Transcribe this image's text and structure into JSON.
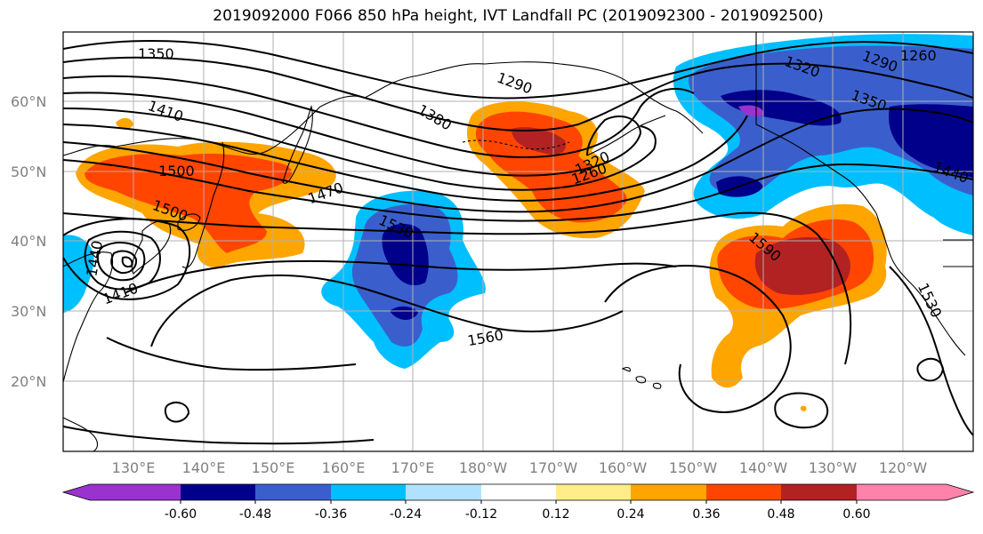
{
  "title": "2019092000 F066 850 hPa height, IVT Landfall PC (2019092300 - 2019092500)",
  "map": {
    "lat_ticks": [
      "60°N",
      "50°N",
      "40°N",
      "30°N",
      "20°N"
    ],
    "lon_ticks": [
      "130°E",
      "140°E",
      "150°E",
      "160°E",
      "170°E",
      "180°W",
      "170°W",
      "160°W",
      "150°W",
      "140°W",
      "130°W",
      "120°W"
    ],
    "contour_labels": [
      "1350",
      "1410",
      "1500",
      "1500",
      "1470",
      "1380",
      "1290",
      "1320",
      "1290",
      "1260",
      "1350",
      "1440",
      "1530",
      "1320",
      "1260",
      "1590",
      "1560",
      "1530",
      "1410",
      "1440"
    ]
  },
  "colorbar": {
    "colors": [
      "#9a32cd",
      "#00008b",
      "#3a5fcd",
      "#00bfff",
      "#b0e2ff",
      "#ffffff",
      "#ffec8b",
      "#ffa500",
      "#ff4500",
      "#b22222",
      "#ff82ab"
    ],
    "tick_labels": [
      "-0.60",
      "-0.48",
      "-0.36",
      "-0.24",
      "-0.12",
      "0.12",
      "0.24",
      "0.36",
      "0.48",
      "0.60"
    ]
  }
}
